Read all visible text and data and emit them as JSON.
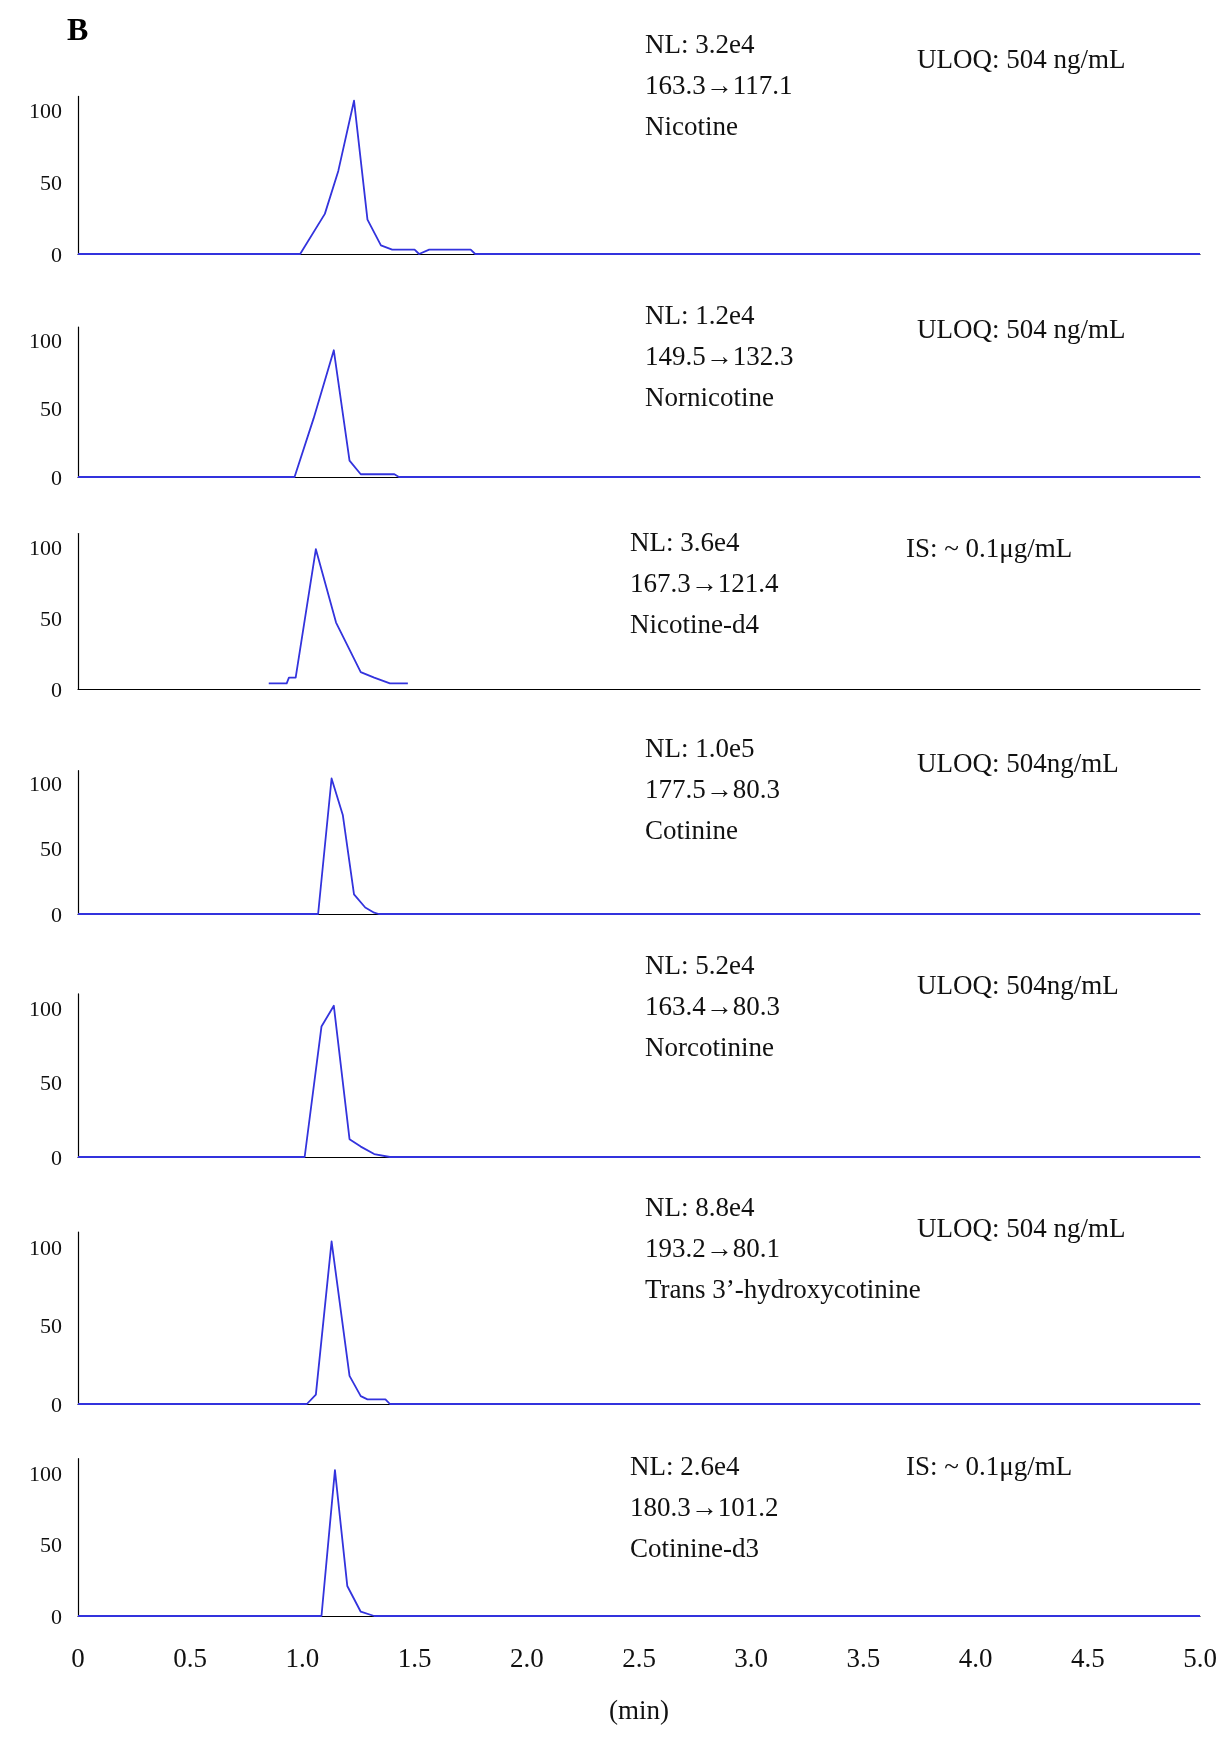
{
  "chart_data": [
    {
      "type": "line",
      "title": "B",
      "color": "#3333dd",
      "xlim": [
        0,
        5
      ],
      "ylim": [
        0,
        110
      ],
      "yticks": [
        0,
        50,
        100
      ],
      "tick_labels": "y",
      "x": [
        0,
        0.99,
        1.1,
        1.16,
        1.23,
        1.29,
        1.35,
        1.4,
        1.5,
        1.52,
        1.565,
        1.75,
        1.77,
        5.0
      ],
      "values": [
        0,
        0,
        28,
        58,
        107,
        24,
        6,
        3,
        3,
        0,
        3,
        3,
        0,
        0
      ],
      "annotations": [
        "NL: 3.2e4",
        "163.3→117.1",
        "Nicotine",
        "ULOQ: 504 ng/mL"
      ]
    },
    {
      "type": "line",
      "color": "#3333dd",
      "xlim": [
        0,
        5
      ],
      "ylim": [
        0,
        110
      ],
      "yticks": [
        0,
        50,
        100
      ],
      "tick_labels": "y",
      "x": [
        0,
        0.965,
        1.05,
        1.14,
        1.21,
        1.26,
        1.41,
        1.43,
        5.0
      ],
      "values": [
        0,
        0,
        43,
        93,
        12,
        2,
        2,
        0,
        0
      ],
      "annotations": [
        "NL: 1.2e4",
        "149.5→132.3",
        "Nornicotine",
        "ULOQ: 504 ng/mL"
      ]
    },
    {
      "type": "line",
      "color": "#3333dd",
      "xlim": [
        0,
        5
      ],
      "ylim": [
        0,
        110
      ],
      "yticks": [
        0,
        50,
        100
      ],
      "tick_labels": "y",
      "x": [
        0.85,
        0.93,
        0.94,
        0.97,
        1.06,
        1.15,
        1.26,
        1.32,
        1.39,
        1.47
      ],
      "values": [
        4,
        4,
        8,
        8,
        99,
        47,
        12,
        8,
        4,
        4
      ],
      "annotations": [
        "NL: 3.6e4",
        "167.3→121.4",
        "Nicotine-d4",
        "IS: ~ 0.1μg/mL"
      ]
    },
    {
      "type": "line",
      "color": "#3333dd",
      "xlim": [
        0,
        5
      ],
      "ylim": [
        0,
        110
      ],
      "yticks": [
        0,
        50,
        100
      ],
      "tick_labels": "y",
      "x": [
        0,
        1.07,
        1.13,
        1.18,
        1.23,
        1.28,
        1.32,
        1.34,
        5.0
      ],
      "values": [
        0,
        0,
        104,
        76,
        15,
        5,
        1,
        0,
        0
      ],
      "annotations": [
        "NL: 1.0e5",
        "177.5→80.3",
        "Cotinine",
        "ULOQ: 504ng/mL"
      ]
    },
    {
      "type": "line",
      "color": "#3333dd",
      "xlim": [
        0,
        5
      ],
      "ylim": [
        0,
        110
      ],
      "yticks": [
        0,
        50,
        100
      ],
      "tick_labels": "y",
      "x": [
        0,
        1.01,
        1.085,
        1.14,
        1.21,
        1.26,
        1.32,
        1.39,
        5.0
      ],
      "values": [
        0,
        0,
        88,
        102,
        12,
        7,
        2,
        0,
        0
      ],
      "annotations": [
        "NL: 5.2e4",
        "163.4→80.3",
        "Norcotinine",
        "ULOQ: 504ng/mL"
      ]
    },
    {
      "type": "line",
      "color": "#3333dd",
      "xlim": [
        0,
        5
      ],
      "ylim": [
        0,
        110
      ],
      "yticks": [
        0,
        50,
        100
      ],
      "tick_labels": "y",
      "x": [
        0,
        1.02,
        1.06,
        1.13,
        1.21,
        1.26,
        1.29,
        1.37,
        1.39,
        5.0
      ],
      "values": [
        0,
        0,
        6,
        104,
        18,
        5,
        3,
        3,
        0,
        0
      ],
      "annotations": [
        "NL: 8.8e4",
        "193.2→80.1",
        "Trans 3’-hydroxycotinine",
        "ULOQ: 504 ng/mL"
      ]
    },
    {
      "type": "line",
      "color": "#3333dd",
      "xlim": [
        0,
        5
      ],
      "ylim": [
        0,
        110
      ],
      "yticks": [
        0,
        50,
        100
      ],
      "xlabel": "(min)",
      "xticks": [
        0,
        0.5,
        {
          "value": 1,
          "label": "1.0"
        },
        1.5,
        {
          "value": 2,
          "label": "2.0"
        },
        2.5,
        {
          "value": 3,
          "label": "3.0"
        },
        3.5,
        {
          "value": 4,
          "label": "4.0"
        },
        4.5,
        {
          "value": 5,
          "label": "5.0"
        }
      ],
      "x": [
        0,
        1.085,
        1.145,
        1.2,
        1.26,
        1.32,
        5.0
      ],
      "values": [
        0,
        0,
        102,
        21,
        3,
        0,
        0
      ],
      "annotations": [
        "NL: 2.6e4",
        "180.3→101.2",
        "Cotinine-d3",
        "IS: ~ 0.1μg/mL"
      ]
    }
  ]
}
